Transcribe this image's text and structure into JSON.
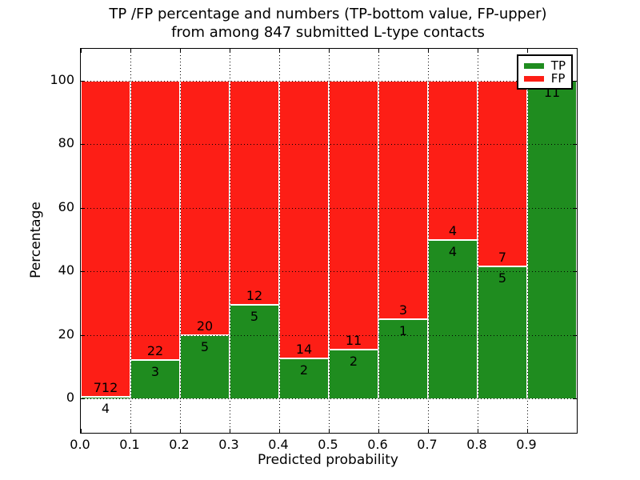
{
  "chart_data": {
    "type": "bar",
    "subtype": "stacked-percentage-histogram",
    "title": "TP /FP percentage and numbers (TP-bottom value, FP-upper) from among 847 submitted L-type contacts",
    "title_line1": "TP /FP percentage and numbers (TP-bottom value, FP-upper)",
    "title_line2": "from among 847 submitted L-type contacts",
    "xlabel": "Predicted probability",
    "ylabel": "Percentage",
    "total_contacts": 847,
    "xlim": [
      0.0,
      1.0
    ],
    "ylim": [
      -10.8,
      110.1
    ],
    "grid": "dotted",
    "legend_position": "upper right",
    "x_ticks": [
      0.0,
      0.1,
      0.2,
      0.3,
      0.4,
      0.5,
      0.6,
      0.7,
      0.8,
      0.9
    ],
    "x_tick_labels": [
      "0.0",
      "0.1",
      "0.2",
      "0.3",
      "0.4",
      "0.5",
      "0.6",
      "0.7",
      "0.8",
      "0.9"
    ],
    "y_ticks": [
      0,
      20,
      40,
      60,
      80,
      100
    ],
    "y_tick_labels": [
      "0",
      "20",
      "40",
      "60",
      "80",
      "100"
    ],
    "categories": [
      "0.0-0.1",
      "0.1-0.2",
      "0.2-0.3",
      "0.3-0.4",
      "0.4-0.5",
      "0.5-0.6",
      "0.6-0.7",
      "0.7-0.8",
      "0.8-0.9",
      "0.9-1.0"
    ],
    "bin_width": 0.1,
    "series": [
      {
        "name": "TP",
        "color": "#1f8c1f",
        "counts": [
          4,
          3,
          5,
          5,
          2,
          2,
          1,
          4,
          5,
          11
        ]
      },
      {
        "name": "FP",
        "color": "#fd1e16",
        "counts": [
          712,
          22,
          20,
          12,
          14,
          11,
          3,
          4,
          7,
          0
        ]
      }
    ],
    "tp_percent": [
      0.56,
      12.0,
      20.0,
      29.41,
      12.5,
      15.38,
      25.0,
      50.0,
      41.67,
      100.0
    ],
    "bar_labels": {
      "tp": [
        "4",
        "3",
        "5",
        "5",
        "2",
        "2",
        "1",
        "4",
        "5",
        "11"
      ],
      "fp": [
        "712",
        "22",
        "20",
        "12",
        "14",
        "11",
        "3",
        "4",
        "7",
        ""
      ]
    },
    "legend": {
      "entries": [
        {
          "label": "TP",
          "color": "#1f8c1f"
        },
        {
          "label": "FP",
          "color": "#fd1e16"
        }
      ]
    }
  }
}
